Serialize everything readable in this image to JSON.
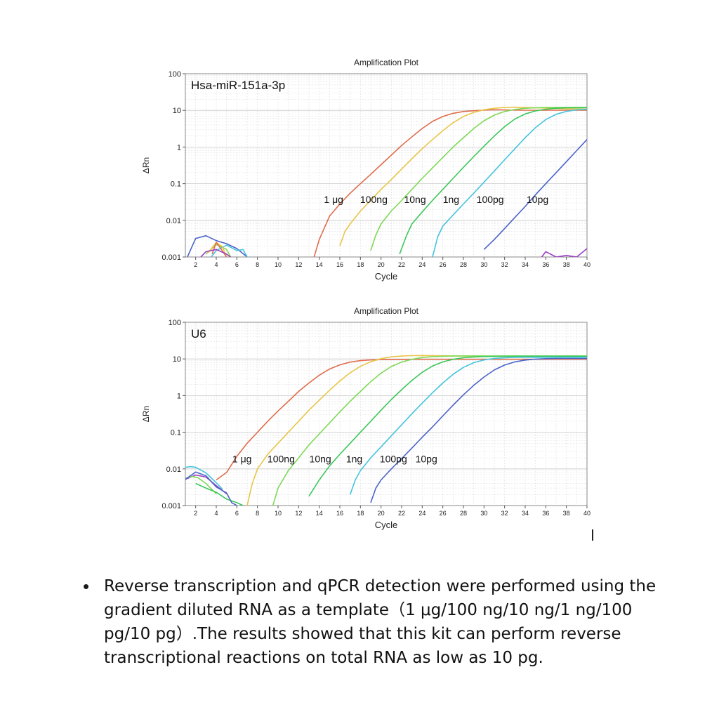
{
  "chart_data": [
    {
      "type": "line",
      "title": "Amplification Plot",
      "annotation": "Hsa-miR-151a-3p",
      "xlabel": "Cycle",
      "ylabel": "ΔRn",
      "xlim": [
        1,
        40
      ],
      "ylim": [
        0.001,
        100
      ],
      "yscale": "log",
      "grid": true,
      "x_ticks": [
        2,
        4,
        6,
        8,
        10,
        12,
        14,
        16,
        18,
        20,
        22,
        24,
        26,
        28,
        30,
        32,
        34,
        36,
        38,
        40
      ],
      "y_ticks": [
        0.001,
        0.01,
        0.1,
        1,
        10,
        100
      ],
      "y_tick_labels": [
        "0.001",
        "0.01",
        "0.1",
        "1",
        "10",
        "100"
      ],
      "series_labels": [
        {
          "text": "1 μg",
          "x": 15.4,
          "y": 0.03
        },
        {
          "text": "100ng",
          "x": 19.3,
          "y": 0.03
        },
        {
          "text": "10ng",
          "x": 23.3,
          "y": 0.03
        },
        {
          "text": "1ng",
          "x": 26.8,
          "y": 0.03
        },
        {
          "text": "100pg",
          "x": 30.6,
          "y": 0.03
        },
        {
          "text": "10pg",
          "x": 35.2,
          "y": 0.03
        }
      ],
      "series": [
        {
          "color": "#e06c4c",
          "x": [
            13.5,
            14,
            15,
            16,
            17,
            18,
            19,
            20,
            21,
            22,
            23,
            24,
            25,
            26,
            27,
            28,
            29,
            30,
            31,
            32,
            33,
            34,
            35,
            36,
            37,
            38,
            39,
            40
          ],
          "y": [
            0.001,
            0.003,
            0.013,
            0.028,
            0.055,
            0.1,
            0.18,
            0.33,
            0.6,
            1.1,
            1.9,
            3.2,
            5.0,
            6.8,
            8.3,
            9.3,
            9.8,
            10.2,
            10.4,
            10.3,
            10.2,
            10.1,
            10.1,
            10.1,
            10.1,
            10.1,
            10.1,
            10.1
          ]
        },
        {
          "color": "#e8c547",
          "x": [
            16,
            16.5,
            17,
            18,
            19,
            20,
            21,
            22,
            23,
            24,
            25,
            26,
            27,
            28,
            29,
            30,
            31,
            32,
            33,
            34,
            35,
            36,
            37,
            38,
            39,
            40
          ],
          "y": [
            0.002,
            0.005,
            0.008,
            0.018,
            0.035,
            0.07,
            0.13,
            0.25,
            0.48,
            0.9,
            1.6,
            2.8,
            4.6,
            6.8,
            8.8,
            10.4,
            11.4,
            12.0,
            12.2,
            12.0,
            11.8,
            11.5,
            11.2,
            11.0,
            10.9,
            10.8
          ]
        },
        {
          "color": "#7ed957",
          "x": [
            19,
            19.5,
            20,
            21,
            22,
            23,
            24,
            25,
            26,
            27,
            28,
            29,
            30,
            31,
            32,
            33,
            34,
            35,
            36,
            37,
            38,
            39,
            40
          ],
          "y": [
            0.0015,
            0.004,
            0.008,
            0.018,
            0.035,
            0.07,
            0.14,
            0.27,
            0.52,
            1.0,
            1.8,
            3.2,
            5.2,
            7.4,
            9.3,
            10.6,
            11.4,
            11.8,
            12.0,
            12.1,
            12.1,
            12.1,
            12.1
          ]
        },
        {
          "color": "#3cc75a",
          "x": [
            21.8,
            22.5,
            23,
            24,
            25,
            26,
            27,
            28,
            29,
            30,
            31,
            32,
            33,
            34,
            35,
            36,
            37,
            38,
            39,
            40
          ],
          "y": [
            0.0012,
            0.004,
            0.008,
            0.017,
            0.035,
            0.07,
            0.14,
            0.28,
            0.55,
            1.05,
            2.0,
            3.6,
            5.8,
            8.0,
            9.7,
            10.8,
            11.4,
            11.7,
            11.8,
            11.8
          ]
        },
        {
          "color": "#44c4dd",
          "x": [
            25,
            25.5,
            26,
            27,
            28,
            29,
            30,
            31,
            32,
            33,
            34,
            35,
            36,
            37,
            38,
            39,
            40
          ],
          "y": [
            0.001,
            0.0035,
            0.007,
            0.014,
            0.028,
            0.055,
            0.11,
            0.22,
            0.45,
            0.9,
            1.8,
            3.4,
            5.6,
            7.8,
            9.4,
            10.3,
            10.7
          ]
        },
        {
          "color": "#4a64c8",
          "x": [
            30,
            31,
            32,
            33,
            34,
            35,
            36,
            37,
            38,
            39,
            40
          ],
          "y": [
            0.0016,
            0.003,
            0.006,
            0.012,
            0.024,
            0.05,
            0.1,
            0.2,
            0.4,
            0.8,
            1.6
          ]
        },
        {
          "color": "#4a64c8",
          "x": [
            1.2,
            1.6,
            2,
            3,
            4,
            5,
            6,
            7
          ],
          "y": [
            0.001,
            0.0018,
            0.0032,
            0.0038,
            0.0028,
            0.0023,
            0.0017,
            0.001
          ]
        },
        {
          "color": "#7ed957",
          "x": [
            3,
            4,
            5,
            5.4
          ],
          "y": [
            0.0012,
            0.0022,
            0.0016,
            0.001
          ]
        },
        {
          "color": "#44c4dd",
          "x": [
            3.5,
            4,
            5,
            6,
            6.6,
            7
          ],
          "y": [
            0.001,
            0.0015,
            0.0021,
            0.0015,
            0.0016,
            0.001
          ]
        },
        {
          "color": "#e8c547",
          "x": [
            3.2,
            4,
            4.6,
            5
          ],
          "y": [
            0.0013,
            0.0025,
            0.0019,
            0.001
          ]
        },
        {
          "color": "#e06c4c",
          "x": [
            3.6,
            4,
            4.5,
            5
          ],
          "y": [
            0.0012,
            0.0025,
            0.0016,
            0.001
          ]
        },
        {
          "color": "#9b3fc4",
          "x": [
            2.5,
            3,
            4,
            5,
            5.4
          ],
          "y": [
            0.001,
            0.0014,
            0.0016,
            0.0012,
            0.001
          ]
        },
        {
          "color": "#9b3fc4",
          "x": [
            35.6,
            36,
            37,
            38,
            39,
            40
          ],
          "y": [
            0.001,
            0.0014,
            0.001,
            0.0011,
            0.001,
            0.0017
          ]
        }
      ]
    },
    {
      "type": "line",
      "title": "Amplification Plot",
      "annotation": "U6",
      "xlabel": "Cycle",
      "ylabel": "ΔRn",
      "xlim": [
        1,
        40
      ],
      "ylim": [
        0.001,
        100
      ],
      "yscale": "log",
      "grid": true,
      "x_ticks": [
        2,
        4,
        6,
        8,
        10,
        12,
        14,
        16,
        18,
        20,
        22,
        24,
        26,
        28,
        30,
        32,
        34,
        36,
        38,
        40
      ],
      "y_ticks": [
        0.001,
        0.01,
        0.1,
        1,
        10,
        100
      ],
      "y_tick_labels": [
        "0.001",
        "0.01",
        "0.1",
        "1",
        "10",
        "100"
      ],
      "series_labels": [
        {
          "text": "1 μg",
          "x": 6.5,
          "y": 0.015
        },
        {
          "text": "100ng",
          "x": 10.3,
          "y": 0.015
        },
        {
          "text": "10ng",
          "x": 14.1,
          "y": 0.015
        },
        {
          "text": "1ng",
          "x": 17.4,
          "y": 0.015
        },
        {
          "text": "100pg",
          "x": 21.2,
          "y": 0.015
        },
        {
          "text": "10pg",
          "x": 24.4,
          "y": 0.015
        }
      ],
      "series": [
        {
          "color": "#e06c4c",
          "x": [
            4,
            5,
            6,
            7,
            8,
            9,
            10,
            11,
            12,
            13,
            14,
            15,
            16,
            17,
            18,
            19,
            20,
            21,
            22,
            24,
            26,
            28,
            30,
            32,
            34,
            36,
            38,
            40
          ],
          "y": [
            0.005,
            0.008,
            0.022,
            0.05,
            0.1,
            0.2,
            0.38,
            0.7,
            1.3,
            2.2,
            3.6,
            5.3,
            6.9,
            8.2,
            9.0,
            9.4,
            9.6,
            9.7,
            9.7,
            9.8,
            9.8,
            9.8,
            9.8,
            9.8,
            9.8,
            9.8,
            9.8,
            9.8
          ]
        },
        {
          "color": "#e8c547",
          "x": [
            7,
            7.5,
            8,
            9,
            10,
            11,
            12,
            13,
            14,
            15,
            16,
            17,
            18,
            19,
            20,
            21,
            22,
            23,
            24,
            25,
            26,
            28,
            30,
            32,
            34,
            36,
            38,
            40
          ],
          "y": [
            0.001,
            0.004,
            0.01,
            0.025,
            0.05,
            0.1,
            0.2,
            0.4,
            0.75,
            1.4,
            2.5,
            4.2,
            6.3,
            8.4,
            10.2,
            11.4,
            12.0,
            12.3,
            12.4,
            12.3,
            12.2,
            12.0,
            11.9,
            11.8,
            11.8,
            11.8,
            11.8,
            11.8
          ]
        },
        {
          "color": "#7ed957",
          "x": [
            9.5,
            10,
            11,
            12,
            13,
            14,
            15,
            16,
            17,
            18,
            19,
            20,
            21,
            22,
            23,
            24,
            25,
            26,
            27,
            28,
            30,
            32,
            34,
            36,
            38,
            40
          ],
          "y": [
            0.001,
            0.003,
            0.009,
            0.02,
            0.045,
            0.09,
            0.18,
            0.36,
            0.7,
            1.3,
            2.4,
            4.1,
            6.2,
            8.2,
            9.8,
            10.9,
            11.5,
            11.8,
            12.0,
            12.1,
            12.1,
            12.1,
            12.1,
            12.1,
            12.1,
            12.1
          ]
        },
        {
          "color": "#3cc75a",
          "x": [
            13,
            14,
            15,
            16,
            17,
            18,
            19,
            20,
            21,
            22,
            23,
            24,
            25,
            26,
            27,
            28,
            29,
            30,
            32,
            34,
            36,
            38,
            40
          ],
          "y": [
            0.0018,
            0.005,
            0.012,
            0.025,
            0.05,
            0.1,
            0.2,
            0.4,
            0.78,
            1.45,
            2.6,
            4.3,
            6.4,
            8.3,
            9.8,
            10.8,
            11.3,
            11.6,
            11.8,
            11.9,
            11.9,
            11.9,
            11.9
          ]
        },
        {
          "color": "#44c4dd",
          "x": [
            17,
            17.5,
            18,
            19,
            20,
            21,
            22,
            23,
            24,
            25,
            26,
            27,
            28,
            29,
            30,
            31,
            32,
            33,
            34,
            36,
            38,
            40
          ],
          "y": [
            0.002,
            0.005,
            0.009,
            0.02,
            0.04,
            0.08,
            0.16,
            0.32,
            0.62,
            1.2,
            2.2,
            3.8,
            5.9,
            7.9,
            9.4,
            10.3,
            10.8,
            11.0,
            11.1,
            11.1,
            11.1,
            11.1
          ]
        },
        {
          "color": "#4a64c8",
          "x": [
            19,
            19.5,
            20,
            21,
            22,
            23,
            24,
            25,
            26,
            27,
            28,
            29,
            30,
            31,
            32,
            33,
            34,
            35,
            36,
            37,
            38,
            40
          ],
          "y": [
            0.0012,
            0.003,
            0.005,
            0.01,
            0.019,
            0.037,
            0.073,
            0.14,
            0.28,
            0.55,
            1.05,
            1.9,
            3.2,
            5.0,
            6.8,
            8.3,
            9.3,
            9.9,
            10.2,
            10.3,
            10.3,
            10.3
          ]
        },
        {
          "color": "#44c4dd",
          "x": [
            1,
            1.5,
            2,
            3,
            4,
            4.6
          ],
          "y": [
            0.011,
            0.0115,
            0.011,
            0.0078,
            0.0042,
            0.0028
          ]
        },
        {
          "color": "#9b3fc4",
          "x": [
            1,
            2,
            3,
            4,
            5
          ],
          "y": [
            0.0052,
            0.0068,
            0.006,
            0.0035,
            0.0021
          ]
        },
        {
          "color": "#7ed957",
          "x": [
            1,
            1.6,
            2.2,
            3,
            4
          ],
          "y": [
            0.0055,
            0.0062,
            0.0058,
            0.004,
            0.0021
          ]
        },
        {
          "color": "#3cc75a",
          "x": [
            2,
            3,
            4,
            5,
            6,
            6.6
          ],
          "y": [
            0.004,
            0.003,
            0.0023,
            0.0015,
            0.0012,
            0.001
          ]
        },
        {
          "color": "#4a64c8",
          "x": [
            1,
            2,
            3,
            4,
            5,
            5.5,
            6
          ],
          "y": [
            0.0052,
            0.0082,
            0.0065,
            0.0032,
            0.0022,
            0.0012,
            0.001
          ]
        }
      ]
    }
  ],
  "caption": {
    "bullet": "•",
    "text": "Reverse transcription and qPCR detection were performed using the gradient diluted RNA as a template（1 μg/100 ng/10 ng/1 ng/100 pg/10 pg）.The results showed that this kit can perform reverse transcriptional reactions on total RNA as low as 10 pg."
  }
}
